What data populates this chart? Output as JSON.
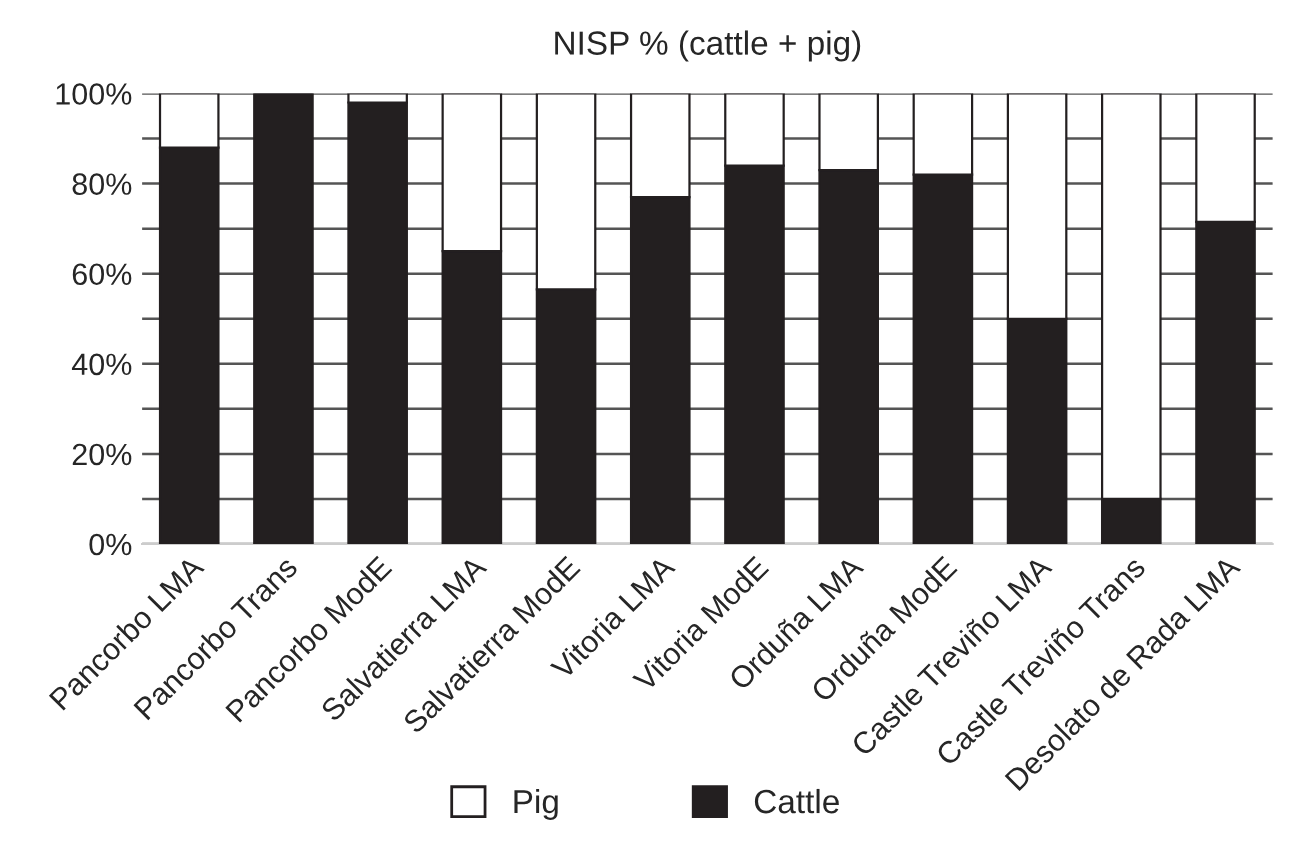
{
  "chart_data": {
    "type": "bar",
    "title": "NISP % (cattle + pig)",
    "categories": [
      "Pancorbo LMA",
      "Pancorbo Trans",
      "Pancorbo ModE",
      "Salvatierra LMA",
      "Salvatierra ModE",
      "Vitoria LMA",
      "Vitoria ModE",
      "Orduña LMA",
      "Orduña ModE",
      "Castle Treviño LMA",
      "Castle Treviño Trans",
      "Desolato de Rada LMA"
    ],
    "stacked": true,
    "series": [
      {
        "name": "Cattle",
        "color": "#231f20",
        "values": [
          88,
          100,
          98,
          65,
          56.5,
          77,
          84,
          83,
          82,
          50,
          10,
          71.5
        ]
      },
      {
        "name": "Pig",
        "color": "#ffffff",
        "values": [
          12,
          null,
          2,
          35,
          43.5,
          23,
          16,
          17,
          18,
          50,
          90,
          28.5
        ]
      }
    ],
    "ylim": [
      0,
      100
    ],
    "yticks": [
      {
        "value": 0,
        "label": "0%"
      },
      {
        "value": 10,
        "label": null
      },
      {
        "value": 20,
        "label": "20%"
      },
      {
        "value": 30,
        "label": null
      },
      {
        "value": 40,
        "label": "40%"
      },
      {
        "value": 50,
        "label": null
      },
      {
        "value": 60,
        "label": "60%"
      },
      {
        "value": 70,
        "label": null
      },
      {
        "value": 80,
        "label": "80%"
      },
      {
        "value": 90,
        "label": null
      },
      {
        "value": 100,
        "label": "100%"
      }
    ],
    "grid": "y",
    "legend": "bottom"
  }
}
